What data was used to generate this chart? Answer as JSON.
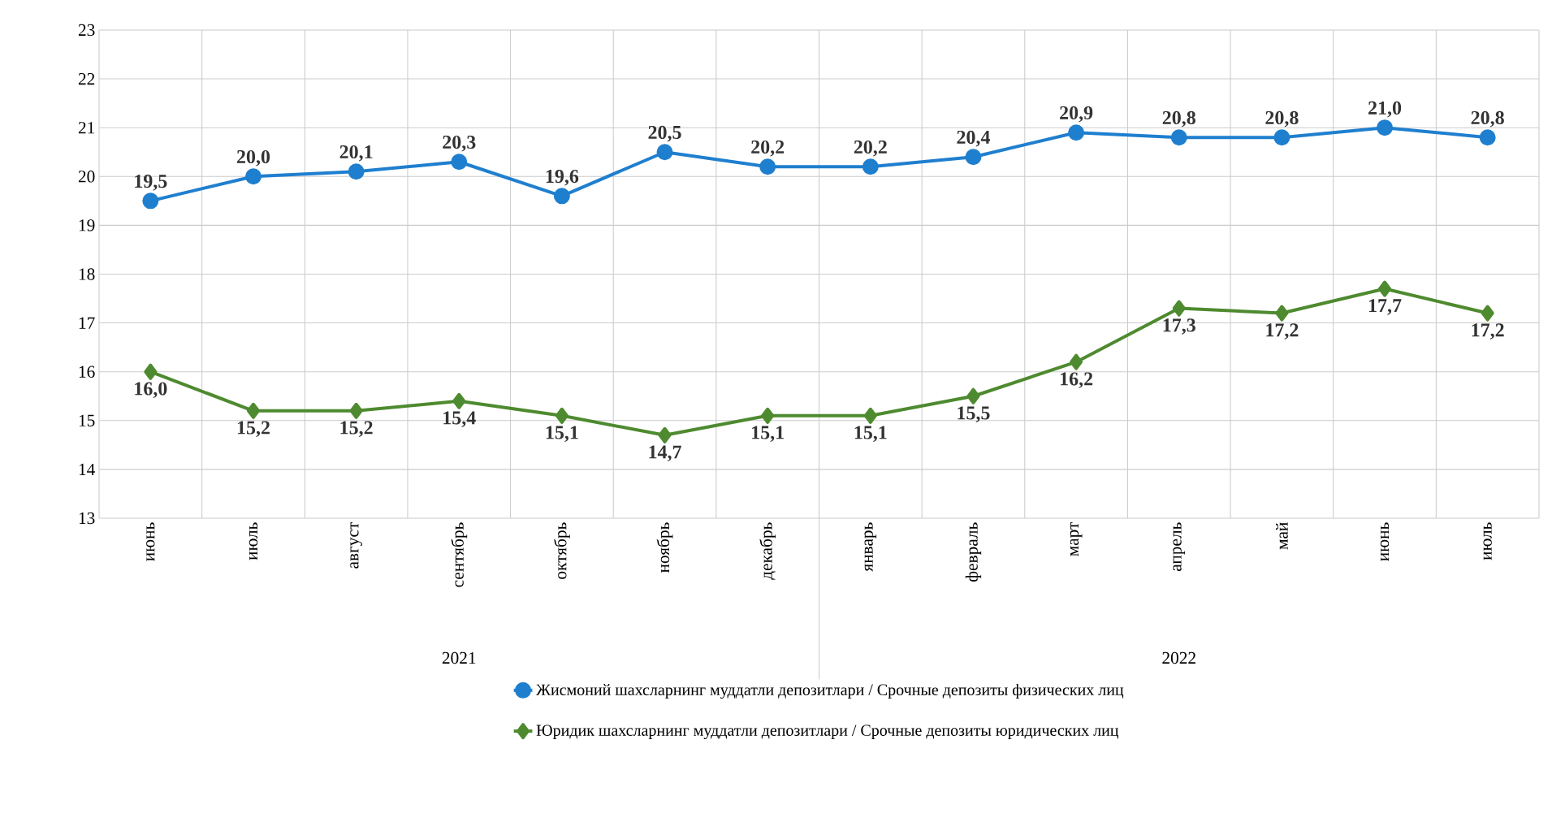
{
  "chart_data": {
    "type": "line",
    "categories": [
      "июнь",
      "июль",
      "август",
      "сентябрь",
      "октябрь",
      "ноябрь",
      "декабрь",
      "январь",
      "февраль",
      "март",
      "апрель",
      "май",
      "июнь",
      "июль"
    ],
    "series": [
      {
        "name": "Жисмоний шахсларнинг  муддатли  депозитлари  / Срочные депозиты  физических  лиц",
        "color": "#1f7fcf",
        "marker": "circle",
        "values": [
          19.5,
          20.0,
          20.1,
          20.3,
          19.6,
          20.5,
          20.2,
          20.2,
          20.4,
          20.9,
          20.8,
          20.8,
          21.0,
          20.8
        ],
        "value_labels": [
          "19,5",
          "20,0",
          "20,1",
          "20,3",
          "19,6",
          "20,5",
          "20,2",
          "20,2",
          "20,4",
          "20,9",
          "20,8",
          "20,8",
          "21,0",
          "20,8"
        ]
      },
      {
        "name": "Юридик  шахсларнинг  муддатли  депозитлари  / Срочные депозиты  юридических  лиц",
        "color": "#4e8a2f",
        "marker": "diamond",
        "values": [
          16.0,
          15.2,
          15.2,
          15.4,
          15.1,
          14.7,
          15.1,
          15.1,
          15.5,
          16.2,
          17.3,
          17.2,
          17.7,
          17.2
        ],
        "value_labels": [
          "16,0",
          "15,2",
          "15,2",
          "15,4",
          "15,1",
          "14,7",
          "15,1",
          "15,1",
          "15,5",
          "16,2",
          "17,3",
          "17,2",
          "17,7",
          "17,2"
        ]
      }
    ],
    "ylim": [
      13,
      23
    ],
    "yticks": [
      13,
      14,
      15,
      16,
      17,
      18,
      19,
      20,
      21,
      22,
      23
    ],
    "annotations": [
      "2021",
      "2022"
    ],
    "grid": true,
    "legend": "bottom",
    "line_style": "solid"
  }
}
